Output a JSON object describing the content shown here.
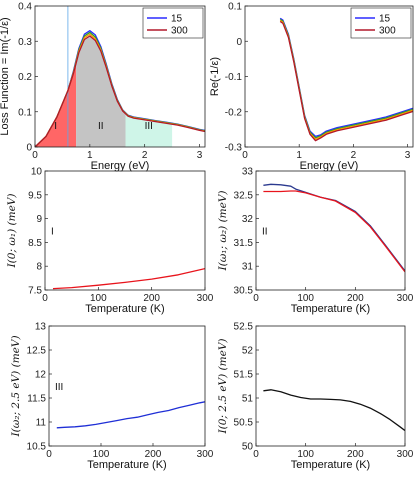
{
  "chart_data": [
    {
      "type": "line",
      "xlabel": "Energy (eV)",
      "ylabel": "Loss Function = Im(-1/ε)",
      "xlim": [
        0,
        3.1
      ],
      "ylim": [
        0,
        0.4
      ],
      "xticks": [
        "0",
        "1",
        "2",
        "3"
      ],
      "xtick_vals": [
        0,
        1,
        2,
        3
      ],
      "yticks": [
        "0",
        "0.1",
        "0.2",
        "0.3",
        "0.4"
      ],
      "ytick_vals": [
        0,
        0.1,
        0.2,
        0.3,
        0.4
      ],
      "legend": {
        "position": "top-right",
        "entries": [
          "15",
          "300"
        ]
      },
      "regions": [
        {
          "label": "I",
          "x": [
            0,
            0.75
          ],
          "color": "#ff6666"
        },
        {
          "label": "II",
          "x": [
            0.75,
            1.65
          ],
          "color": "#c4c4c4"
        },
        {
          "label": "III",
          "x": [
            1.65,
            2.5
          ],
          "color": "#cff5e8"
        }
      ],
      "vline": 0.6,
      "series": [
        {
          "name": "15",
          "color": "#2b2bff",
          "x": [
            0,
            0.2,
            0.4,
            0.6,
            0.7,
            0.8,
            0.9,
            1.0,
            1.1,
            1.2,
            1.3,
            1.4,
            1.5,
            1.6,
            1.7,
            1.8,
            2.0,
            2.2,
            2.4,
            2.6,
            2.8,
            3.0,
            3.1
          ],
          "y": [
            0,
            0.03,
            0.085,
            0.16,
            0.215,
            0.28,
            0.32,
            0.33,
            0.318,
            0.285,
            0.235,
            0.18,
            0.135,
            0.105,
            0.09,
            0.085,
            0.08,
            0.075,
            0.07,
            0.065,
            0.058,
            0.05,
            0.047
          ]
        },
        {
          "name": "",
          "color": "#2ca02c",
          "x": [
            0,
            0.2,
            0.4,
            0.6,
            0.7,
            0.8,
            0.9,
            1.0,
            1.1,
            1.2,
            1.3,
            1.4,
            1.5,
            1.6,
            1.7,
            1.8,
            2.0,
            2.2,
            2.4,
            2.6,
            2.8,
            3.0,
            3.1
          ],
          "y": [
            0,
            0.03,
            0.085,
            0.16,
            0.212,
            0.276,
            0.315,
            0.325,
            0.312,
            0.28,
            0.231,
            0.177,
            0.133,
            0.104,
            0.089,
            0.084,
            0.079,
            0.074,
            0.069,
            0.064,
            0.057,
            0.049,
            0.046
          ]
        },
        {
          "name": "",
          "color": "#ff9900",
          "x": [
            0,
            0.2,
            0.4,
            0.6,
            0.7,
            0.8,
            0.9,
            1.0,
            1.1,
            1.2,
            1.3,
            1.4,
            1.5,
            1.6,
            1.7,
            1.8,
            2.0,
            2.2,
            2.4,
            2.6,
            2.8,
            3.0,
            3.1
          ],
          "y": [
            0,
            0.03,
            0.085,
            0.16,
            0.21,
            0.272,
            0.31,
            0.32,
            0.307,
            0.276,
            0.228,
            0.175,
            0.131,
            0.103,
            0.088,
            0.083,
            0.078,
            0.073,
            0.068,
            0.063,
            0.056,
            0.048,
            0.045
          ]
        },
        {
          "name": "300",
          "color": "#b2182b",
          "x": [
            0,
            0.2,
            0.4,
            0.6,
            0.7,
            0.8,
            0.9,
            1.0,
            1.1,
            1.2,
            1.3,
            1.4,
            1.5,
            1.6,
            1.7,
            1.8,
            2.0,
            2.2,
            2.4,
            2.6,
            2.8,
            3.0,
            3.1
          ],
          "y": [
            0,
            0.03,
            0.085,
            0.16,
            0.208,
            0.268,
            0.305,
            0.315,
            0.302,
            0.272,
            0.225,
            0.173,
            0.13,
            0.102,
            0.087,
            0.082,
            0.077,
            0.072,
            0.067,
            0.062,
            0.055,
            0.047,
            0.044
          ]
        }
      ]
    },
    {
      "type": "line",
      "xlabel": "Energy (eV)",
      "ylabel": "Re(-1/ε)",
      "xlim": [
        0,
        3.1
      ],
      "ylim": [
        -0.3,
        0.1
      ],
      "xticks": [
        "0",
        "1",
        "2",
        "3"
      ],
      "xtick_vals": [
        0,
        1,
        2,
        3
      ],
      "yticks": [
        "-0.3",
        "-0.2",
        "-0.1",
        "0",
        "0.1"
      ],
      "ytick_vals": [
        -0.3,
        -0.2,
        -0.1,
        0,
        0.1
      ],
      "legend": {
        "position": "top-right",
        "entries": [
          "15",
          "300"
        ]
      },
      "series": [
        {
          "name": "15",
          "color": "#2b2bff",
          "x": [
            0.65,
            0.7,
            0.8,
            0.9,
            1.0,
            1.1,
            1.2,
            1.3,
            1.4,
            1.5,
            1.7,
            2.0,
            2.3,
            2.6,
            2.9,
            3.1
          ],
          "y": [
            0.065,
            0.06,
            0.02,
            -0.05,
            -0.13,
            -0.21,
            -0.255,
            -0.27,
            -0.265,
            -0.255,
            -0.245,
            -0.235,
            -0.225,
            -0.215,
            -0.2,
            -0.19
          ]
        },
        {
          "name": "",
          "color": "#2ca02c",
          "x": [
            0.65,
            0.7,
            0.8,
            0.9,
            1.0,
            1.1,
            1.2,
            1.3,
            1.4,
            1.5,
            1.7,
            2.0,
            2.3,
            2.6,
            2.9,
            3.1
          ],
          "y": [
            0.062,
            0.057,
            0.017,
            -0.053,
            -0.133,
            -0.213,
            -0.258,
            -0.274,
            -0.268,
            -0.258,
            -0.248,
            -0.238,
            -0.228,
            -0.218,
            -0.203,
            -0.193
          ]
        },
        {
          "name": "",
          "color": "#ff9900",
          "x": [
            0.65,
            0.7,
            0.8,
            0.9,
            1.0,
            1.1,
            1.2,
            1.3,
            1.4,
            1.5,
            1.7,
            2.0,
            2.3,
            2.6,
            2.9,
            3.1
          ],
          "y": [
            0.059,
            0.054,
            0.014,
            -0.056,
            -0.136,
            -0.216,
            -0.261,
            -0.278,
            -0.271,
            -0.261,
            -0.251,
            -0.241,
            -0.231,
            -0.221,
            -0.206,
            -0.196
          ]
        },
        {
          "name": "300",
          "color": "#b2182b",
          "x": [
            0.65,
            0.7,
            0.8,
            0.9,
            1.0,
            1.1,
            1.2,
            1.3,
            1.4,
            1.5,
            1.7,
            2.0,
            2.3,
            2.6,
            2.9,
            3.1
          ],
          "y": [
            0.056,
            0.051,
            0.011,
            -0.059,
            -0.139,
            -0.219,
            -0.264,
            -0.282,
            -0.274,
            -0.264,
            -0.254,
            -0.244,
            -0.234,
            -0.224,
            -0.209,
            -0.199
          ]
        }
      ]
    },
    {
      "type": "line",
      "xlabel": "Temperature (K)",
      "ylabel": "I(0; ω₁) (meV)",
      "region_label": "I",
      "xlim": [
        0,
        300
      ],
      "ylim": [
        7.5,
        10
      ],
      "xticks": [
        "0",
        "100",
        "200",
        "300"
      ],
      "xtick_vals": [
        0,
        100,
        200,
        300
      ],
      "yticks": [
        "7.5",
        "8",
        "8.5",
        "9",
        "9.5",
        "10"
      ],
      "ytick_vals": [
        7.5,
        8,
        8.5,
        9,
        9.5,
        10
      ],
      "series": [
        {
          "name": "",
          "color": "#e8141c",
          "x": [
            15,
            50,
            100,
            150,
            200,
            250,
            300
          ],
          "y": [
            7.53,
            7.55,
            7.6,
            7.66,
            7.73,
            7.82,
            7.95
          ]
        }
      ]
    },
    {
      "type": "line",
      "xlabel": "Temperature (K)",
      "ylabel": "I(ω₁; ω₂) (meV)",
      "region_label": "II",
      "xlim": [
        0,
        300
      ],
      "ylim": [
        30.5,
        33
      ],
      "xticks": [
        "0",
        "100",
        "200",
        "300"
      ],
      "xtick_vals": [
        0,
        100,
        200,
        300
      ],
      "yticks": [
        "30.5",
        "31",
        "31.5",
        "32",
        "32.5",
        "33"
      ],
      "ytick_vals": [
        30.5,
        31,
        31.5,
        32,
        32.5,
        33
      ],
      "series": [
        {
          "name": "",
          "color": "#2b3a8f",
          "x": [
            15,
            30,
            50,
            70,
            80,
            100,
            130,
            160,
            200,
            230,
            260,
            300
          ],
          "y": [
            32.7,
            32.72,
            32.71,
            32.68,
            32.62,
            32.55,
            32.45,
            32.38,
            32.15,
            31.85,
            31.45,
            30.9
          ]
        },
        {
          "name": "",
          "color": "#e8141c",
          "x": [
            15,
            30,
            50,
            70,
            80,
            100,
            130,
            160,
            200,
            230,
            260,
            300
          ],
          "y": [
            32.57,
            32.57,
            32.57,
            32.58,
            32.58,
            32.54,
            32.45,
            32.37,
            32.13,
            31.83,
            31.43,
            30.88
          ]
        }
      ]
    },
    {
      "type": "line",
      "xlabel": "Temperature (K)",
      "ylabel": "I(ω₂; 2.5 eV) (meV)",
      "region_label": "III",
      "xlim": [
        0,
        300
      ],
      "ylim": [
        10.5,
        13
      ],
      "xticks": [
        "0",
        "100",
        "200",
        "300"
      ],
      "xtick_vals": [
        0,
        100,
        200,
        300
      ],
      "yticks": [
        "10.5",
        "11",
        "11.5",
        "12",
        "12.5",
        "13"
      ],
      "ytick_vals": [
        10.5,
        11,
        11.5,
        12,
        12.5,
        13
      ],
      "series": [
        {
          "name": "",
          "color": "#1f2fd6",
          "x": [
            15,
            30,
            50,
            70,
            90,
            110,
            130,
            150,
            170,
            190,
            210,
            230,
            250,
            270,
            290,
            300
          ],
          "y": [
            10.88,
            10.89,
            10.9,
            10.92,
            10.95,
            10.99,
            11.03,
            11.07,
            11.1,
            11.15,
            11.2,
            11.24,
            11.3,
            11.35,
            11.4,
            11.42
          ]
        }
      ]
    },
    {
      "type": "line",
      "xlabel": "Temperature (K)",
      "ylabel": "I(0; 2.5 eV) (meV)",
      "xlim": [
        0,
        300
      ],
      "ylim": [
        50,
        52.5
      ],
      "xticks": [
        "0",
        "100",
        "200",
        "300"
      ],
      "xtick_vals": [
        0,
        100,
        200,
        300
      ],
      "yticks": [
        "50",
        "50.5",
        "51",
        "51.5",
        "52",
        "52.5"
      ],
      "ytick_vals": [
        50,
        50.5,
        51,
        51.5,
        52,
        52.5
      ],
      "series": [
        {
          "name": "",
          "color": "#111111",
          "x": [
            15,
            30,
            50,
            70,
            90,
            110,
            130,
            150,
            170,
            190,
            210,
            230,
            250,
            270,
            290,
            300
          ],
          "y": [
            51.15,
            51.17,
            51.13,
            51.06,
            51.01,
            50.98,
            50.98,
            50.97,
            50.96,
            50.93,
            50.87,
            50.79,
            50.68,
            50.55,
            50.4,
            50.32
          ]
        }
      ]
    }
  ]
}
